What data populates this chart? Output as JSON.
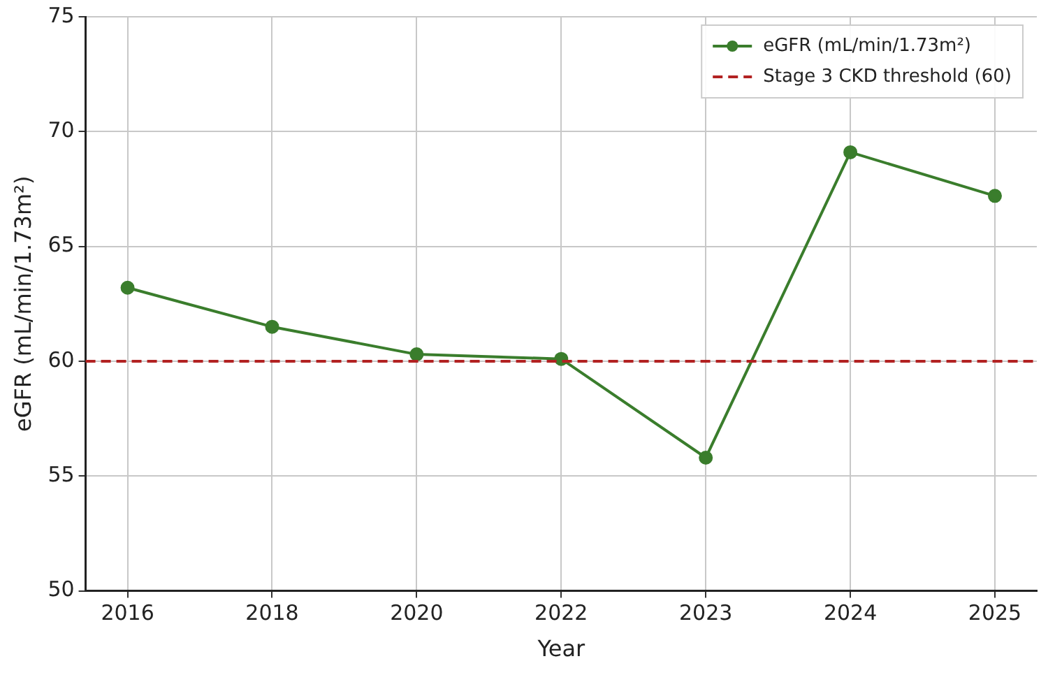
{
  "chart_data": {
    "type": "line",
    "xlabel": "Year",
    "ylabel": "eGFR (mL/min/1.73m²)",
    "categories": [
      "2016",
      "2018",
      "2020",
      "2022",
      "2023",
      "2024",
      "2025"
    ],
    "series": [
      {
        "name": "eGFR (mL/min/1.73m²)",
        "color": "#3a7d2c",
        "values": [
          63.2,
          61.5,
          60.3,
          60.1,
          55.8,
          69.1,
          67.2
        ]
      }
    ],
    "ylim": [
      50,
      75
    ],
    "yticks": [
      50,
      55,
      60,
      65,
      70,
      75
    ],
    "grid": true,
    "legend": "top right",
    "marker": "circle",
    "line_style": "solid",
    "ref_lines": [
      {
        "axis": "y",
        "value": 60,
        "label": "Stage 3 CKD threshold (60)",
        "color": "#b22222",
        "line_style": "dashed"
      }
    ]
  }
}
